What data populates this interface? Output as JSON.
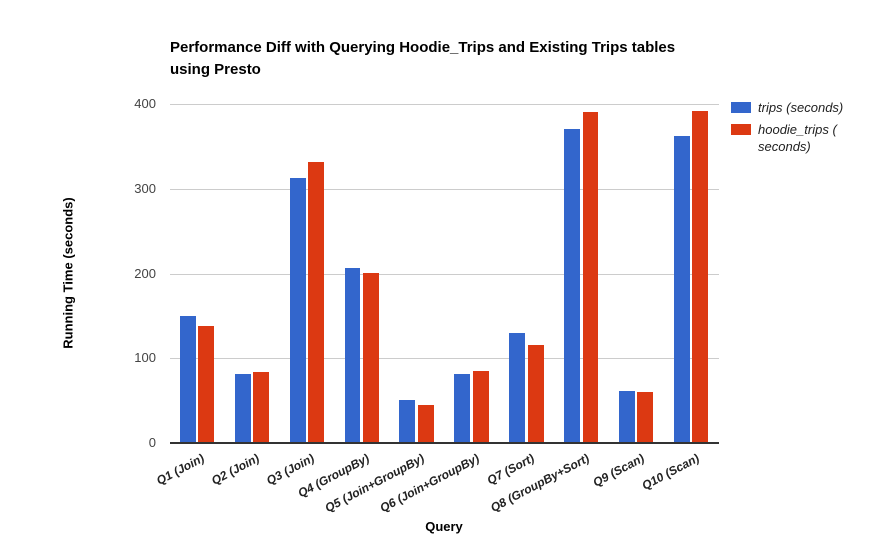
{
  "header": {
    "title_line1": "Performance Diff with Querying Hoodie_Trips and Existing Trips tables",
    "title_line2": "using Presto"
  },
  "legend": {
    "items": [
      {
        "label": "trips (seconds)",
        "color": "#3366cc"
      },
      {
        "label": "hoodie_trips ( seconds)",
        "color": "#dc3912"
      }
    ]
  },
  "colors": {
    "series_blue": "#3366cc",
    "series_red": "#dc3912",
    "gridline": "#cccccc",
    "baseline": "#333333",
    "tick_text": "#444444"
  },
  "chart_data": {
    "type": "bar",
    "title": "Performance Diff with Querying Hoodie_Trips and Existing Trips tables using Presto",
    "xlabel": "Query",
    "ylabel": "Running Time (seconds)",
    "ylim": [
      0,
      400
    ],
    "yticks": [
      0,
      100,
      200,
      300,
      400
    ],
    "grid": true,
    "legend_position": "right",
    "categories": [
      "Q1 (Join)",
      "Q2 (Join)",
      "Q3 (Join)",
      "Q4 (GroupBy)",
      "Q5 (Join+GroupBy)",
      "Q6 (Join+GroupBy)",
      "Q7 (Sort)",
      "Q8 (GroupBy+Sort)",
      "Q9 (Scan)",
      "Q10 (Scan)"
    ],
    "series": [
      {
        "name": "trips (seconds)",
        "color": "#3366cc",
        "values": [
          150,
          81,
          313,
          207,
          51,
          81,
          130,
          371,
          61,
          362
        ]
      },
      {
        "name": "hoodie_trips (seconds)",
        "color": "#dc3912",
        "values": [
          138,
          84,
          331,
          201,
          45,
          85,
          116,
          390,
          60,
          392
        ]
      }
    ]
  }
}
